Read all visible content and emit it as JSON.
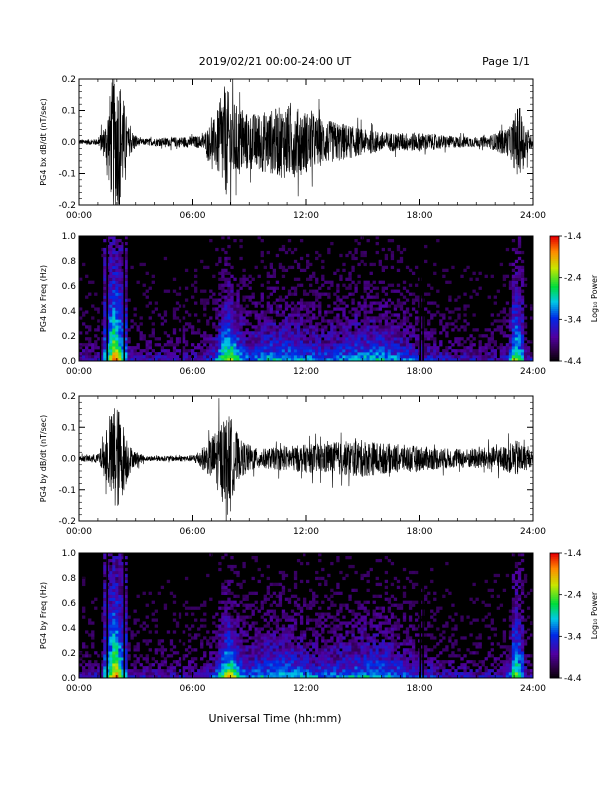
{
  "header": {
    "date_range": "2019/02/21  00:00-24:00 UT",
    "page": "Page 1/1"
  },
  "xlabel": "Universal Time (hh:mm)",
  "chart_data": [
    {
      "type": "line",
      "ylabel": "PG4 bx dB/dt (nT/sec)",
      "x_ticks": [
        "00:00",
        "06:00",
        "12:00",
        "18:00",
        "24:00"
      ],
      "y_ticks": [
        "0.2",
        "0.1",
        "0.0",
        "-0.1",
        "-0.2"
      ],
      "ylim": [
        -0.2,
        0.2
      ],
      "xlim_hours": [
        0,
        24
      ],
      "envelope": [
        {
          "x": 0,
          "amp": 0.008
        },
        {
          "x": 1.0,
          "amp": 0.01
        },
        {
          "x": 1.4,
          "amp": 0.06
        },
        {
          "x": 1.8,
          "amp": 0.22
        },
        {
          "x": 2.2,
          "amp": 0.2
        },
        {
          "x": 2.6,
          "amp": 0.05
        },
        {
          "x": 3.2,
          "amp": 0.01
        },
        {
          "x": 6.5,
          "amp": 0.02
        },
        {
          "x": 7.2,
          "amp": 0.08
        },
        {
          "x": 7.7,
          "amp": 0.18
        },
        {
          "x": 8.3,
          "amp": 0.12
        },
        {
          "x": 9.0,
          "amp": 0.09
        },
        {
          "x": 10.0,
          "amp": 0.1
        },
        {
          "x": 11.0,
          "amp": 0.12
        },
        {
          "x": 12.0,
          "amp": 0.1
        },
        {
          "x": 13.0,
          "amp": 0.07
        },
        {
          "x": 14.0,
          "amp": 0.06
        },
        {
          "x": 15.0,
          "amp": 0.04
        },
        {
          "x": 16.5,
          "amp": 0.03
        },
        {
          "x": 18.0,
          "amp": 0.03
        },
        {
          "x": 19.5,
          "amp": 0.02
        },
        {
          "x": 21.5,
          "amp": 0.015
        },
        {
          "x": 22.8,
          "amp": 0.05
        },
        {
          "x": 23.2,
          "amp": 0.12
        },
        {
          "x": 23.6,
          "amp": 0.06
        },
        {
          "x": 24,
          "amp": 0.01
        }
      ]
    },
    {
      "type": "heatmap",
      "ylabel": "PG4 bx Freq (Hz)",
      "x_ticks": [
        "00:00",
        "06:00",
        "12:00",
        "18:00",
        "24:00"
      ],
      "y_ticks": [
        "1.0",
        "0.8",
        "0.6",
        "0.4",
        "0.2",
        "0.0"
      ],
      "ylim": [
        0,
        1.0
      ],
      "colorbar": {
        "label": "Log₁₀ Power",
        "ticks": [
          "-1.4",
          "-2.4",
          "-3.4",
          "-4.4"
        ],
        "range": [
          -4.4,
          -1.4
        ]
      }
    },
    {
      "type": "line",
      "ylabel": "PG4 by dB/dt (nT/sec)",
      "x_ticks": [
        "00:00",
        "06:00",
        "12:00",
        "18:00",
        "24:00"
      ],
      "y_ticks": [
        "0.2",
        "0.1",
        "0.0",
        "-0.1",
        "-0.2"
      ],
      "ylim": [
        -0.2,
        0.2
      ],
      "xlim_hours": [
        0,
        24
      ],
      "envelope": [
        {
          "x": 0,
          "amp": 0.008
        },
        {
          "x": 1.0,
          "amp": 0.015
        },
        {
          "x": 1.5,
          "amp": 0.08
        },
        {
          "x": 1.9,
          "amp": 0.2
        },
        {
          "x": 2.3,
          "amp": 0.12
        },
        {
          "x": 2.8,
          "amp": 0.03
        },
        {
          "x": 3.5,
          "amp": 0.008
        },
        {
          "x": 6.0,
          "amp": 0.01
        },
        {
          "x": 6.8,
          "amp": 0.05
        },
        {
          "x": 7.6,
          "amp": 0.13
        },
        {
          "x": 8.0,
          "amp": 0.14
        },
        {
          "x": 8.5,
          "amp": 0.06
        },
        {
          "x": 9.5,
          "amp": 0.03
        },
        {
          "x": 11.0,
          "amp": 0.04
        },
        {
          "x": 13.0,
          "amp": 0.05
        },
        {
          "x": 15.0,
          "amp": 0.06
        },
        {
          "x": 16.0,
          "amp": 0.05
        },
        {
          "x": 18.0,
          "amp": 0.04
        },
        {
          "x": 20.0,
          "amp": 0.03
        },
        {
          "x": 22.5,
          "amp": 0.04
        },
        {
          "x": 23.2,
          "amp": 0.06
        },
        {
          "x": 24,
          "amp": 0.02
        }
      ]
    },
    {
      "type": "heatmap",
      "ylabel": "PG4 by Freq (Hz)",
      "x_ticks": [
        "00:00",
        "06:00",
        "12:00",
        "18:00",
        "24:00"
      ],
      "y_ticks": [
        "1.0",
        "0.8",
        "0.6",
        "0.4",
        "0.2",
        "0.0"
      ],
      "ylim": [
        0,
        1.0
      ],
      "colorbar": {
        "label": "Log₁₀ Power",
        "ticks": [
          "-1.4",
          "-2.4",
          "-3.4",
          "-4.4"
        ],
        "range": [
          -4.4,
          -1.4
        ]
      }
    }
  ]
}
